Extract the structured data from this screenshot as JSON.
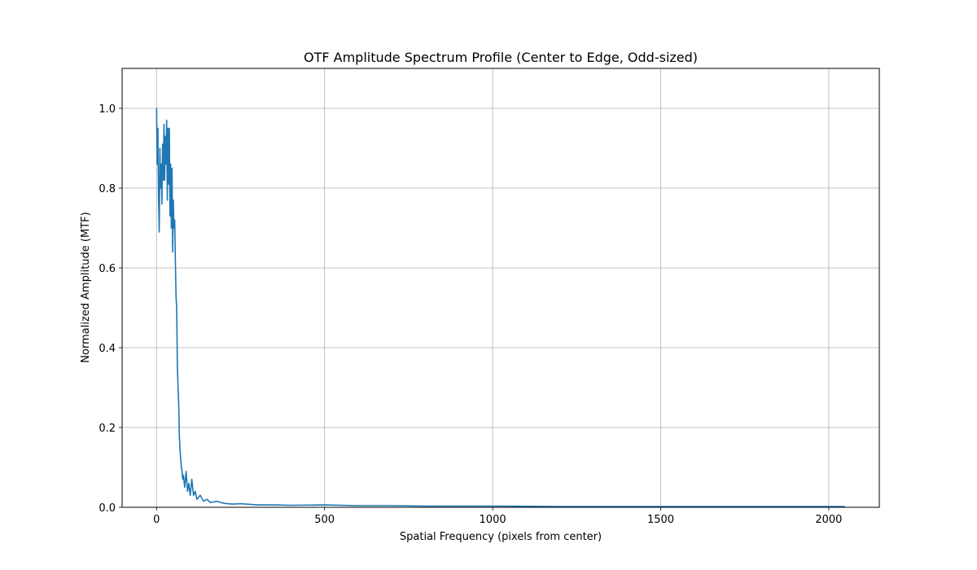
{
  "chart_data": {
    "type": "line",
    "title": "OTF Amplitude Spectrum Profile (Center to Edge, Odd-sized)",
    "xlabel": "Spatial Frequency (pixels from center)",
    "ylabel": "Normalized Amplitude (MTF)",
    "xlim": [
      -102.4,
      2150.4
    ],
    "ylim": [
      0,
      1.1
    ],
    "xticks": [
      0,
      500,
      1000,
      1500,
      2000
    ],
    "xtick_labels": [
      "0",
      "500",
      "1000",
      "1500",
      "2000"
    ],
    "yticks": [
      0,
      0.2,
      0.4,
      0.6,
      0.8,
      1.0
    ],
    "ytick_labels": [
      "0.0",
      "0.2",
      "0.4",
      "0.6",
      "0.8",
      "1.0"
    ],
    "grid": true,
    "series": [
      {
        "color": "#1f77b4",
        "x": [
          0,
          2,
          4,
          6,
          8,
          10,
          12,
          14,
          16,
          18,
          20,
          22,
          24,
          26,
          28,
          30,
          32,
          34,
          36,
          38,
          40,
          42,
          44,
          46,
          48,
          50,
          52,
          54,
          56,
          58,
          60,
          62,
          64,
          66,
          68,
          70,
          72,
          74,
          76,
          78,
          80,
          84,
          88,
          92,
          96,
          100,
          105,
          110,
          115,
          120,
          130,
          140,
          150,
          160,
          180,
          200,
          225,
          250,
          300,
          350,
          400,
          500,
          600,
          700,
          800,
          900,
          1000,
          1200,
          1400,
          1600,
          1800,
          2000,
          2048
        ],
        "y": [
          1.0,
          0.86,
          0.95,
          0.78,
          0.69,
          0.9,
          0.8,
          0.86,
          0.76,
          0.91,
          0.82,
          0.96,
          0.82,
          0.93,
          0.86,
          0.97,
          0.77,
          0.95,
          0.81,
          0.95,
          0.73,
          0.86,
          0.7,
          0.85,
          0.64,
          0.77,
          0.7,
          0.72,
          0.62,
          0.53,
          0.5,
          0.35,
          0.3,
          0.26,
          0.18,
          0.14,
          0.12,
          0.1,
          0.09,
          0.07,
          0.08,
          0.05,
          0.09,
          0.04,
          0.06,
          0.03,
          0.07,
          0.03,
          0.04,
          0.02,
          0.03,
          0.015,
          0.02,
          0.012,
          0.015,
          0.01,
          0.008,
          0.009,
          0.006,
          0.006,
          0.005,
          0.006,
          0.004,
          0.004,
          0.003,
          0.003,
          0.003,
          0.002,
          0.002,
          0.002,
          0.002,
          0.002,
          0.002
        ]
      }
    ]
  }
}
